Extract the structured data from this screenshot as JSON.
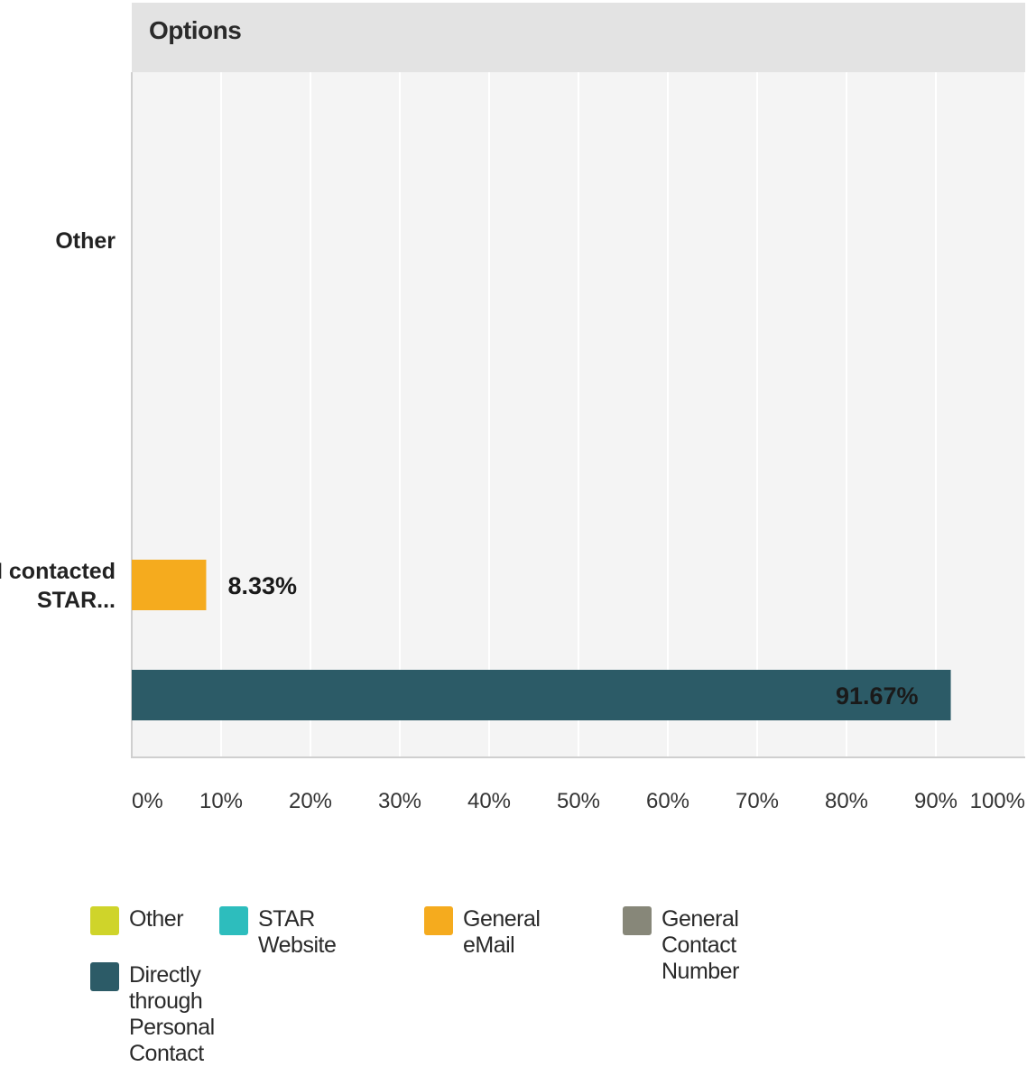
{
  "header": {
    "title": "Options"
  },
  "chart_data": {
    "type": "bar",
    "orientation": "horizontal",
    "categories": [
      "Other",
      "I contacted STAR..."
    ],
    "series": [
      {
        "name": "Other",
        "color": "#cfd42a",
        "values": [
          0,
          0
        ]
      },
      {
        "name": "STAR Website",
        "color": "#2dbdbd",
        "values": [
          0,
          0
        ]
      },
      {
        "name": "General eMail",
        "color": "#f5ab1e",
        "values": [
          0,
          8.33
        ]
      },
      {
        "name": "General Contact Number",
        "color": "#878779",
        "values": [
          0,
          0
        ]
      },
      {
        "name": "Directly through Personal Contact",
        "color": "#2c5b67",
        "values": [
          0,
          91.67
        ]
      }
    ],
    "data_labels": [
      "8.33%",
      "91.67%"
    ],
    "xlim": [
      0,
      100
    ],
    "x_ticks": [
      "0%",
      "10%",
      "20%",
      "30%",
      "40%",
      "50%",
      "60%",
      "70%",
      "80%",
      "90%",
      "100%"
    ],
    "grid": "vertical",
    "legend_position": "bottom"
  }
}
